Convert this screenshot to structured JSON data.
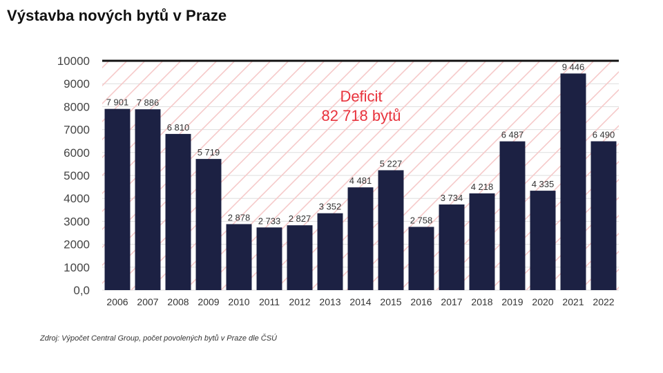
{
  "title": "Výstavba nových bytů v Praze",
  "source": "Zdroj: Výpočet Central Group, počet povolených bytů v Praze dle ČSÚ",
  "colors": {
    "bar": "#1c2143",
    "deficit": "#e8323c",
    "hatch": "#f6c9c9",
    "grid": "#dddddd",
    "topline": "#111111"
  },
  "chart_data": {
    "type": "bar",
    "title": "Výstavba nových bytů v Praze",
    "categories": [
      "2006",
      "2007",
      "2008",
      "2009",
      "2010",
      "2011",
      "2012",
      "2013",
      "2014",
      "2015",
      "2016",
      "2017",
      "2018",
      "2019",
      "2020",
      "2021",
      "2022"
    ],
    "values": [
      7901,
      7886,
      6810,
      5719,
      2878,
      2733,
      2827,
      3352,
      4481,
      5227,
      2758,
      3734,
      4218,
      6487,
      4335,
      9446,
      6490
    ],
    "value_labels": [
      "7 901",
      "7 886",
      "6 810",
      "5 719",
      "2 878",
      "2 733",
      "2 827",
      "3 352",
      "4 481",
      "5 227",
      "2 758",
      "3 734",
      "4 218",
      "6 487",
      "4 335",
      "9 446",
      "6 490"
    ],
    "ylim": [
      0,
      10000
    ],
    "yticks": [
      0,
      1000,
      2000,
      3000,
      4000,
      5000,
      6000,
      7000,
      8000,
      9000,
      10000
    ],
    "ytick_labels": [
      "0,0",
      "1000",
      "2000",
      "3000",
      "4000",
      "5000",
      "6000",
      "7000",
      "8000",
      "9000",
      "10000"
    ],
    "target_line": 10000,
    "annotation": {
      "line1": "Deficit",
      "line2": "82 718 bytů"
    },
    "xlabel": "",
    "ylabel": "",
    "grid": true
  }
}
